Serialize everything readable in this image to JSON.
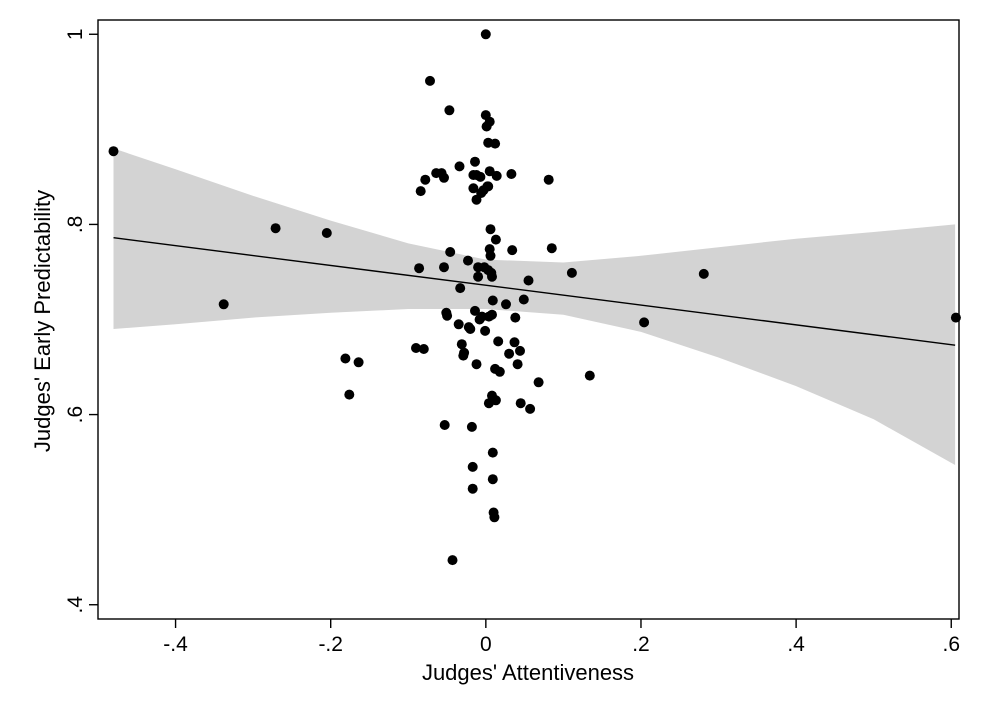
{
  "chart_data": {
    "type": "scatter",
    "title": "",
    "xlabel": "Judges' Attentiveness",
    "ylabel": "Judges' Early Predictability",
    "xlim": [
      -0.5,
      0.61
    ],
    "ylim": [
      0.385,
      1.015
    ],
    "x_ticks": [
      -0.4,
      -0.2,
      0,
      0.2,
      0.4,
      0.6
    ],
    "x_tick_labels": [
      "-.4",
      "-.2",
      "0",
      ".2",
      ".4",
      ".6"
    ],
    "y_ticks": [
      0.4,
      0.6,
      0.8,
      1.0
    ],
    "y_tick_labels": [
      ".4",
      ".6",
      ".8",
      "1"
    ],
    "grid": false,
    "legend": "none",
    "colors": {
      "points": "#000000",
      "fit_line": "#000000",
      "ci_band": "#d3d3d3"
    },
    "fit_line": {
      "x": [
        -0.48,
        0.605
      ],
      "y": [
        0.786,
        0.673
      ]
    },
    "confidence_band": {
      "x": [
        -0.48,
        -0.4,
        -0.3,
        -0.2,
        -0.1,
        0.0,
        0.1,
        0.2,
        0.3,
        0.4,
        0.5,
        0.605
      ],
      "upper": [
        0.88,
        0.858,
        0.83,
        0.804,
        0.78,
        0.763,
        0.76,
        0.767,
        0.776,
        0.785,
        0.792,
        0.8
      ],
      "lower": [
        0.69,
        0.695,
        0.702,
        0.707,
        0.711,
        0.711,
        0.705,
        0.687,
        0.66,
        0.63,
        0.595,
        0.547
      ]
    },
    "points": [
      {
        "x": -0.48,
        "y": 0.877
      },
      {
        "x": -0.338,
        "y": 0.716
      },
      {
        "x": -0.271,
        "y": 0.796
      },
      {
        "x": -0.205,
        "y": 0.791
      },
      {
        "x": -0.181,
        "y": 0.659
      },
      {
        "x": -0.176,
        "y": 0.621
      },
      {
        "x": -0.164,
        "y": 0.655
      },
      {
        "x": -0.09,
        "y": 0.67
      },
      {
        "x": -0.086,
        "y": 0.754
      },
      {
        "x": -0.084,
        "y": 0.835
      },
      {
        "x": -0.08,
        "y": 0.669
      },
      {
        "x": -0.078,
        "y": 0.847
      },
      {
        "x": -0.072,
        "y": 0.951
      },
      {
        "x": -0.064,
        "y": 0.854
      },
      {
        "x": -0.057,
        "y": 0.854
      },
      {
        "x": -0.054,
        "y": 0.849
      },
      {
        "x": -0.054,
        "y": 0.755
      },
      {
        "x": -0.053,
        "y": 0.589
      },
      {
        "x": -0.051,
        "y": 0.707
      },
      {
        "x": -0.05,
        "y": 0.704
      },
      {
        "x": -0.047,
        "y": 0.92
      },
      {
        "x": -0.046,
        "y": 0.771
      },
      {
        "x": -0.043,
        "y": 0.447
      },
      {
        "x": -0.035,
        "y": 0.695
      },
      {
        "x": -0.034,
        "y": 0.861
      },
      {
        "x": -0.033,
        "y": 0.733
      },
      {
        "x": -0.031,
        "y": 0.674
      },
      {
        "x": -0.029,
        "y": 0.662
      },
      {
        "x": -0.028,
        "y": 0.665
      },
      {
        "x": -0.023,
        "y": 0.762
      },
      {
        "x": -0.022,
        "y": 0.692
      },
      {
        "x": -0.02,
        "y": 0.69
      },
      {
        "x": -0.018,
        "y": 0.587
      },
      {
        "x": -0.017,
        "y": 0.545
      },
      {
        "x": -0.017,
        "y": 0.522
      },
      {
        "x": -0.016,
        "y": 0.852
      },
      {
        "x": -0.016,
        "y": 0.838
      },
      {
        "x": -0.014,
        "y": 0.866
      },
      {
        "x": -0.014,
        "y": 0.709
      },
      {
        "x": -0.012,
        "y": 0.852
      },
      {
        "x": -0.012,
        "y": 0.826
      },
      {
        "x": -0.012,
        "y": 0.653
      },
      {
        "x": -0.01,
        "y": 0.755
      },
      {
        "x": -0.01,
        "y": 0.745
      },
      {
        "x": -0.008,
        "y": 0.7
      },
      {
        "x": -0.007,
        "y": 0.85
      },
      {
        "x": -0.006,
        "y": 0.833
      },
      {
        "x": -0.005,
        "y": 0.703
      },
      {
        "x": -0.003,
        "y": 0.836
      },
      {
        "x": -0.002,
        "y": 0.755
      },
      {
        "x": -0.001,
        "y": 0.688
      },
      {
        "x": 0.0,
        "y": 1.0
      },
      {
        "x": 0.0,
        "y": 0.915
      },
      {
        "x": 0.001,
        "y": 0.903
      },
      {
        "x": 0.002,
        "y": 0.84
      },
      {
        "x": 0.003,
        "y": 0.886
      },
      {
        "x": 0.003,
        "y": 0.84
      },
      {
        "x": 0.003,
        "y": 0.752
      },
      {
        "x": 0.004,
        "y": 0.703
      },
      {
        "x": 0.004,
        "y": 0.612
      },
      {
        "x": 0.005,
        "y": 0.908
      },
      {
        "x": 0.005,
        "y": 0.856
      },
      {
        "x": 0.005,
        "y": 0.774
      },
      {
        "x": 0.006,
        "y": 0.767
      },
      {
        "x": 0.006,
        "y": 0.795
      },
      {
        "x": 0.007,
        "y": 0.749
      },
      {
        "x": 0.008,
        "y": 0.745
      },
      {
        "x": 0.008,
        "y": 0.705
      },
      {
        "x": 0.008,
        "y": 0.62
      },
      {
        "x": 0.009,
        "y": 0.56
      },
      {
        "x": 0.009,
        "y": 0.532
      },
      {
        "x": 0.009,
        "y": 0.72
      },
      {
        "x": 0.01,
        "y": 0.497
      },
      {
        "x": 0.011,
        "y": 0.492
      },
      {
        "x": 0.012,
        "y": 0.885
      },
      {
        "x": 0.012,
        "y": 0.648
      },
      {
        "x": 0.013,
        "y": 0.784
      },
      {
        "x": 0.013,
        "y": 0.615
      },
      {
        "x": 0.014,
        "y": 0.851
      },
      {
        "x": 0.016,
        "y": 0.677
      },
      {
        "x": 0.018,
        "y": 0.645
      },
      {
        "x": 0.026,
        "y": 0.716
      },
      {
        "x": 0.03,
        "y": 0.664
      },
      {
        "x": 0.033,
        "y": 0.853
      },
      {
        "x": 0.034,
        "y": 0.773
      },
      {
        "x": 0.037,
        "y": 0.676
      },
      {
        "x": 0.038,
        "y": 0.702
      },
      {
        "x": 0.041,
        "y": 0.653
      },
      {
        "x": 0.044,
        "y": 0.667
      },
      {
        "x": 0.045,
        "y": 0.612
      },
      {
        "x": 0.049,
        "y": 0.721
      },
      {
        "x": 0.055,
        "y": 0.741
      },
      {
        "x": 0.057,
        "y": 0.606
      },
      {
        "x": 0.068,
        "y": 0.634
      },
      {
        "x": 0.081,
        "y": 0.847
      },
      {
        "x": 0.085,
        "y": 0.775
      },
      {
        "x": 0.111,
        "y": 0.749
      },
      {
        "x": 0.134,
        "y": 0.641
      },
      {
        "x": 0.204,
        "y": 0.697
      },
      {
        "x": 0.281,
        "y": 0.748
      },
      {
        "x": 0.606,
        "y": 0.702
      }
    ]
  }
}
